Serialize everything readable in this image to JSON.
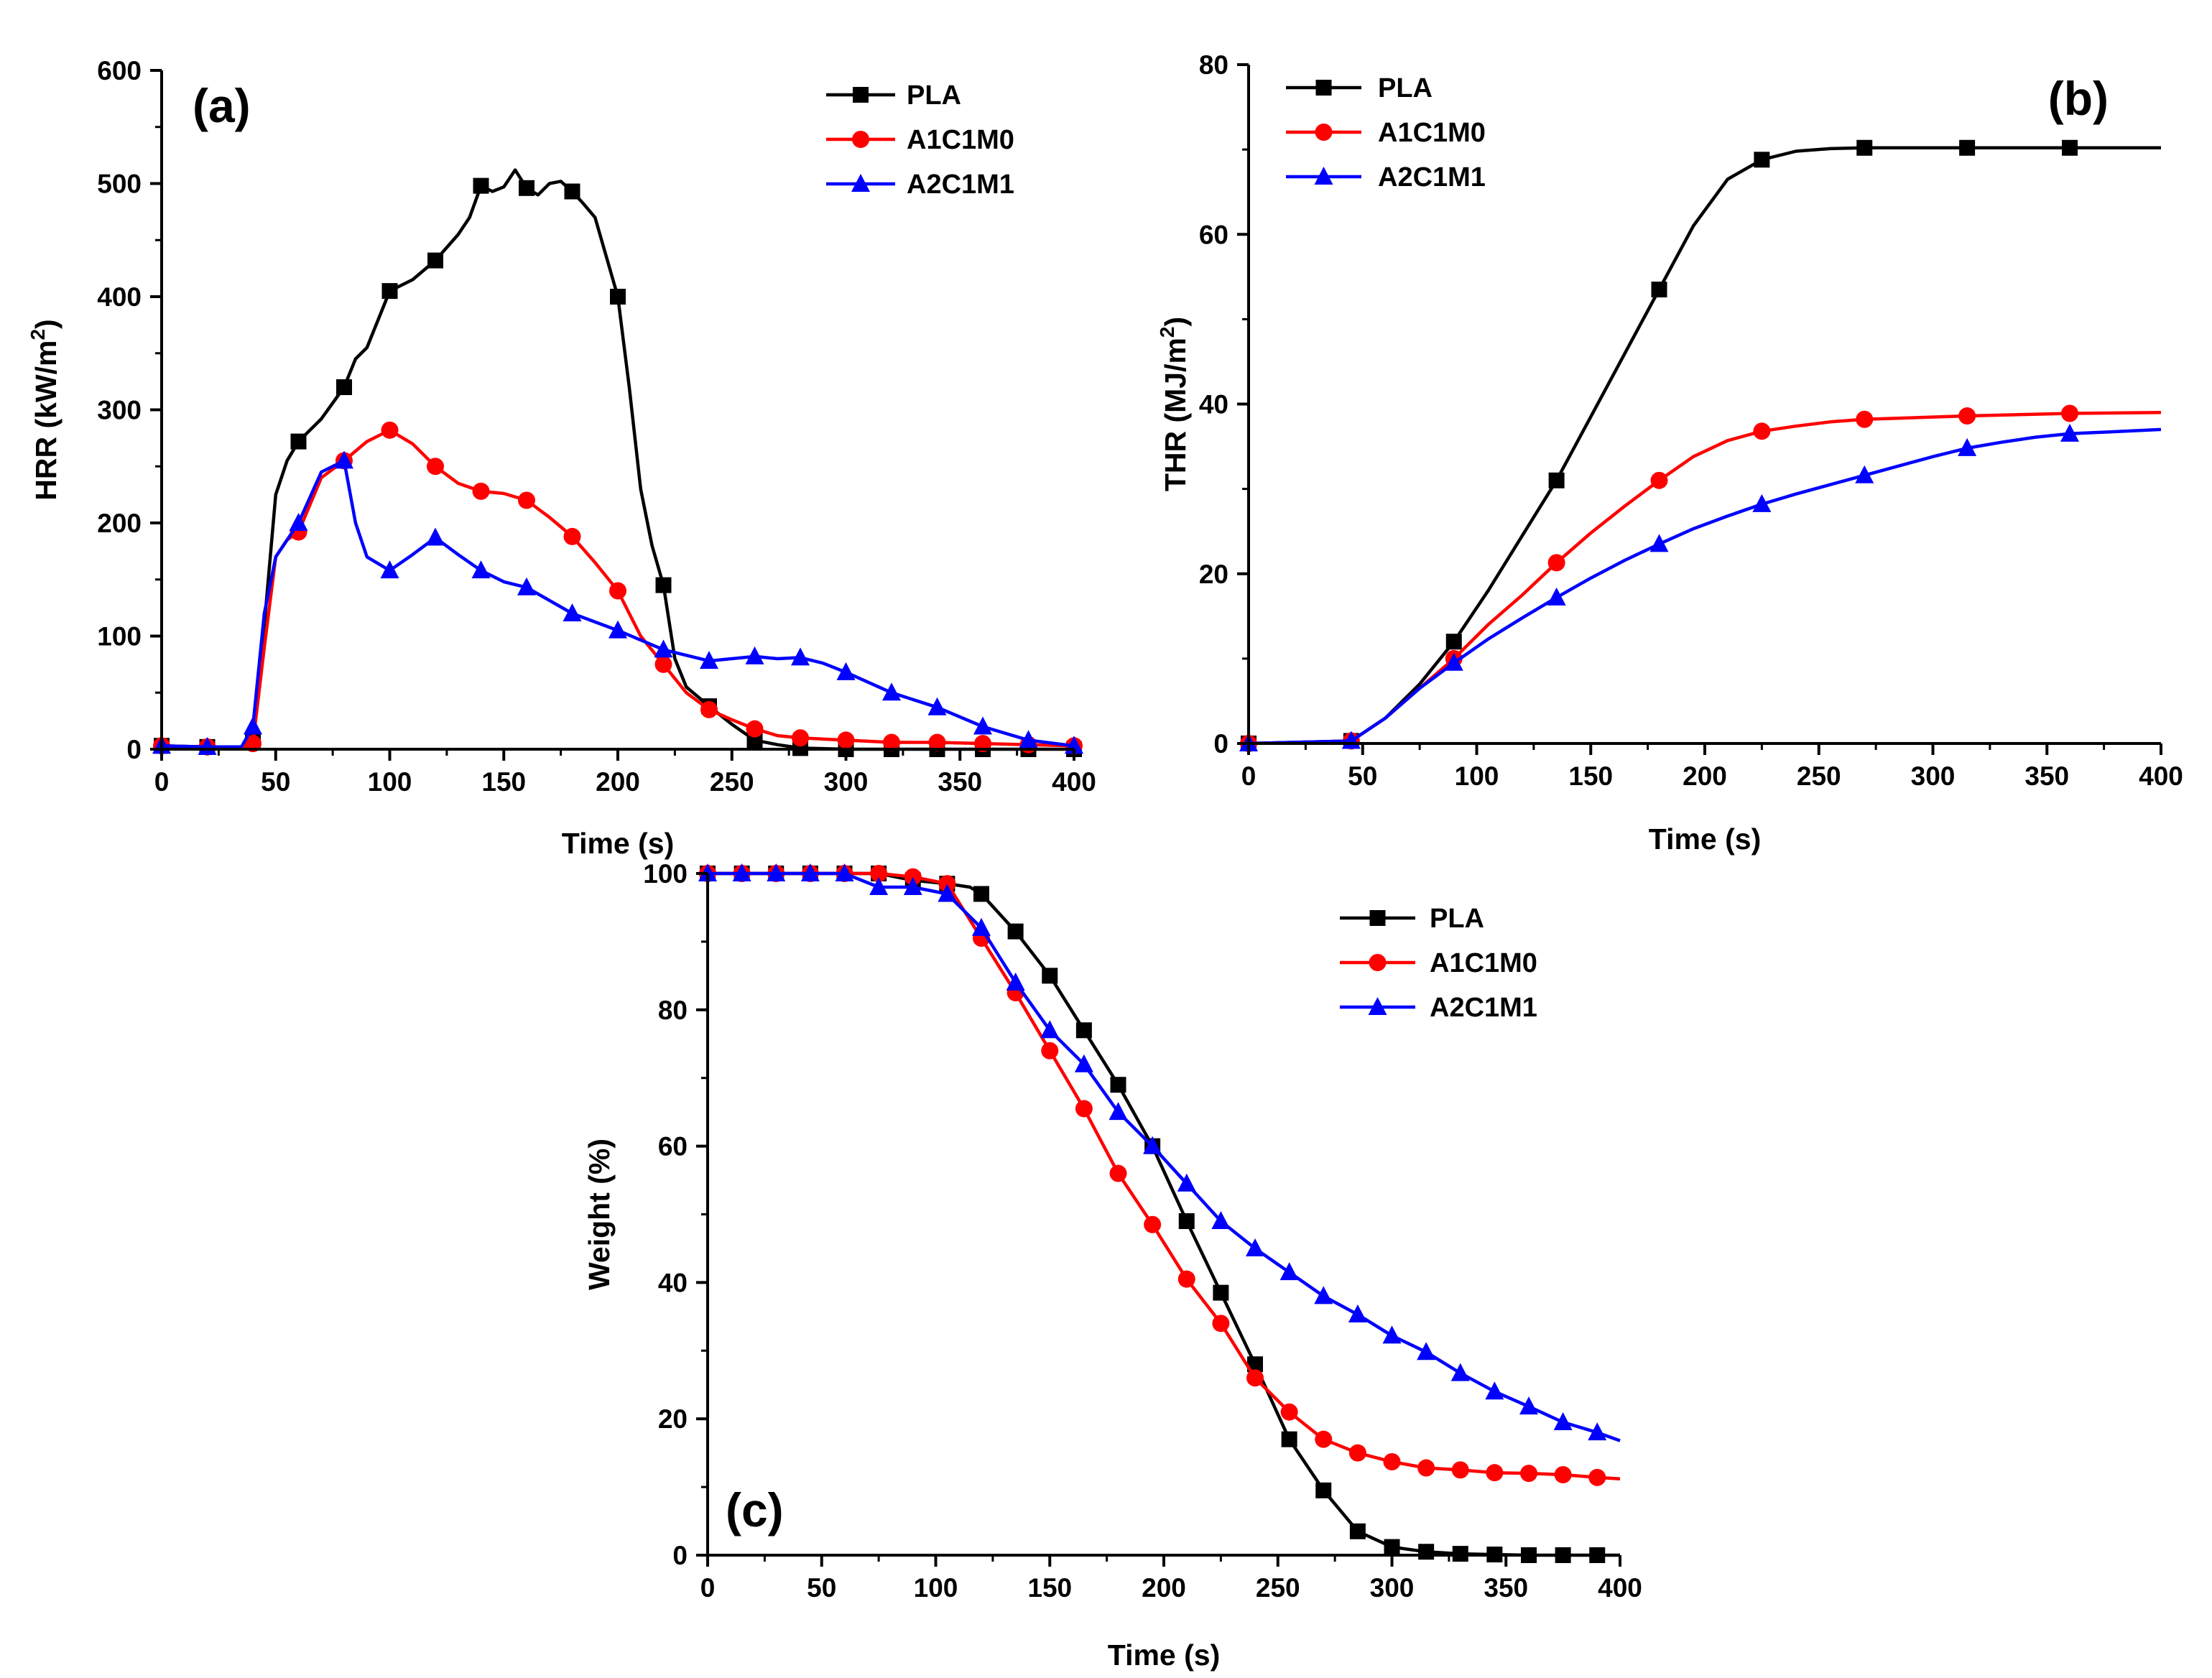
{
  "colors": {
    "PLA": "#000000",
    "A1C1M0": "#ff0000",
    "A2C1M1": "#0000ff"
  },
  "chart_data": [
    {
      "type": "line",
      "panel_label": "(a)",
      "xlabel": "Time (s)",
      "ylabel": "HRR (kW/m",
      "ylabel_sup": "2",
      "ylabel_end": ")",
      "xlim": [
        0,
        400
      ],
      "ylim": [
        0,
        600
      ],
      "xticks": [
        "0",
        "50",
        "100",
        "150",
        "200",
        "250",
        "300",
        "350",
        "400"
      ],
      "yticks": [
        "0",
        "100",
        "200",
        "300",
        "400",
        "500",
        "600"
      ],
      "legend_position": "top-right",
      "series": [
        {
          "name": "PLA",
          "marker": "square",
          "x": [
            0,
            20,
            35,
            40,
            45,
            50,
            55,
            60,
            70,
            80,
            85,
            90,
            100,
            110,
            120,
            130,
            135,
            140,
            145,
            150,
            155,
            160,
            165,
            170,
            175,
            180,
            185,
            190,
            200,
            205,
            210,
            215,
            220,
            225,
            230,
            240,
            250,
            260,
            270,
            280,
            300,
            320,
            340,
            360,
            380,
            400
          ],
          "y": [
            3,
            2,
            2,
            8,
            110,
            225,
            255,
            272,
            292,
            320,
            345,
            355,
            405,
            415,
            432,
            455,
            470,
            498,
            493,
            497,
            512,
            496,
            490,
            500,
            502,
            493,
            482,
            470,
            400,
            320,
            230,
            180,
            145,
            80,
            55,
            38,
            22,
            8,
            4,
            1,
            0,
            0,
            0,
            0,
            0,
            0
          ],
          "marker_x": [
            0,
            20,
            40,
            60,
            80,
            100,
            120,
            140,
            160,
            180,
            200,
            220,
            240,
            260,
            280,
            300,
            320,
            340,
            360,
            380,
            400
          ]
        },
        {
          "name": "A1C1M0",
          "marker": "circle",
          "x": [
            0,
            20,
            35,
            40,
            45,
            50,
            55,
            60,
            70,
            80,
            90,
            100,
            110,
            120,
            130,
            140,
            150,
            160,
            170,
            180,
            190,
            200,
            210,
            220,
            230,
            240,
            250,
            260,
            270,
            280,
            300,
            320,
            340,
            360,
            380,
            400
          ],
          "y": [
            3,
            2,
            2,
            5,
            90,
            170,
            185,
            192,
            240,
            255,
            272,
            282,
            270,
            250,
            235,
            228,
            226,
            220,
            205,
            188,
            165,
            140,
            100,
            75,
            50,
            35,
            26,
            18,
            12,
            10,
            8,
            6,
            6,
            5,
            4,
            3
          ],
          "marker_x": [
            0,
            20,
            40,
            60,
            80,
            100,
            120,
            140,
            160,
            180,
            200,
            220,
            240,
            260,
            280,
            300,
            320,
            340,
            360,
            380,
            400
          ]
        },
        {
          "name": "A2C1M1",
          "marker": "triangle",
          "x": [
            0,
            20,
            35,
            40,
            45,
            50,
            60,
            70,
            80,
            85,
            90,
            100,
            110,
            120,
            130,
            140,
            150,
            160,
            180,
            200,
            220,
            240,
            260,
            270,
            280,
            290,
            300,
            320,
            340,
            360,
            380,
            400
          ],
          "y": [
            3,
            2,
            2,
            20,
            120,
            170,
            200,
            245,
            255,
            200,
            170,
            158,
            172,
            187,
            172,
            158,
            148,
            143,
            120,
            105,
            88,
            78,
            82,
            80,
            81,
            76,
            68,
            50,
            37,
            20,
            8,
            3
          ],
          "marker_x": [
            0,
            20,
            40,
            60,
            80,
            100,
            120,
            140,
            160,
            180,
            200,
            220,
            240,
            260,
            280,
            300,
            320,
            340,
            360,
            380,
            400
          ]
        }
      ]
    },
    {
      "type": "line",
      "panel_label": "(b)",
      "xlabel": "Time (s)",
      "ylabel": "THR (MJ/m",
      "ylabel_sup": "2",
      "ylabel_end": ")",
      "xlim": [
        0,
        400
      ],
      "ylim": [
        0,
        80
      ],
      "xticks": [
        "0",
        "50",
        "100",
        "150",
        "200",
        "250",
        "300",
        "350",
        "400"
      ],
      "yticks": [
        "0",
        "20",
        "40",
        "60",
        "80"
      ],
      "legend_position": "top-left",
      "series": [
        {
          "name": "PLA",
          "marker": "square",
          "x": [
            0,
            45,
            60,
            75,
            90,
            105,
            120,
            135,
            150,
            165,
            180,
            195,
            210,
            225,
            240,
            255,
            270,
            315,
            360,
            400
          ],
          "y": [
            0,
            0.3,
            3,
            7,
            12,
            18,
            24.5,
            31,
            38.5,
            46,
            53.5,
            61,
            66.5,
            68.8,
            69.8,
            70.1,
            70.2,
            70.2,
            70.2,
            70.2
          ],
          "marker_x": [
            0,
            45,
            90,
            135,
            180,
            225,
            270,
            315,
            360
          ]
        },
        {
          "name": "A1C1M0",
          "marker": "circle",
          "x": [
            0,
            45,
            60,
            75,
            90,
            105,
            120,
            135,
            150,
            165,
            180,
            195,
            210,
            225,
            240,
            255,
            270,
            315,
            360,
            400
          ],
          "y": [
            0,
            0.3,
            3,
            6.5,
            10,
            14,
            17.5,
            21.3,
            24.8,
            28,
            31,
            33.8,
            35.7,
            36.8,
            37.4,
            37.9,
            38.2,
            38.6,
            38.9,
            39
          ],
          "marker_x": [
            0,
            45,
            90,
            135,
            180,
            225,
            270,
            315,
            360
          ]
        },
        {
          "name": "A2C1M1",
          "marker": "triangle",
          "x": [
            0,
            45,
            60,
            75,
            90,
            105,
            120,
            135,
            150,
            165,
            180,
            195,
            210,
            225,
            240,
            255,
            270,
            285,
            300,
            315,
            330,
            345,
            360,
            400
          ],
          "y": [
            0,
            0.3,
            3,
            6.5,
            9.5,
            12.3,
            14.8,
            17.2,
            19.5,
            21.6,
            23.5,
            25.3,
            26.8,
            28.2,
            29.4,
            30.5,
            31.6,
            32.7,
            33.8,
            34.8,
            35.5,
            36.1,
            36.5,
            37
          ],
          "marker_x": [
            0,
            45,
            90,
            135,
            180,
            225,
            270,
            315,
            360
          ]
        }
      ]
    },
    {
      "type": "line",
      "panel_label": "(c)",
      "xlabel": "Time (s)",
      "ylabel": "Weight (%)",
      "ylabel_sup": "",
      "ylabel_end": "",
      "xlim": [
        0,
        400
      ],
      "ylim": [
        0,
        100
      ],
      "ytick_values": [
        0,
        20,
        40,
        60,
        80,
        100
      ],
      "xticks": [
        "0",
        "50",
        "100",
        "150",
        "200",
        "250",
        "300",
        "350",
        "400"
      ],
      "yticks": [
        "0",
        "20",
        "40",
        "60",
        "80",
        "100"
      ],
      "legend_position": "top-right",
      "series": [
        {
          "name": "PLA",
          "marker": "square",
          "x": [
            0,
            15,
            30,
            45,
            60,
            75,
            90,
            105,
            115,
            120,
            135,
            150,
            165,
            180,
            195,
            210,
            225,
            240,
            255,
            270,
            285,
            300,
            315,
            330,
            345,
            360,
            375,
            390,
            400
          ],
          "y": [
            100,
            100,
            100,
            100,
            100,
            100,
            99,
            98.5,
            98,
            97,
            91.5,
            85,
            77,
            69,
            60,
            49,
            38.5,
            28,
            17,
            9.5,
            3.5,
            1.2,
            0.5,
            0.2,
            0.1,
            0,
            0,
            0,
            0
          ],
          "marker_x": [
            0,
            15,
            30,
            45,
            60,
            75,
            90,
            105,
            120,
            135,
            150,
            165,
            180,
            195,
            210,
            225,
            240,
            255,
            270,
            285,
            300,
            315,
            330,
            345,
            360,
            375,
            390
          ]
        },
        {
          "name": "A1C1M0",
          "marker": "circle",
          "x": [
            0,
            15,
            30,
            45,
            60,
            75,
            90,
            105,
            120,
            135,
            150,
            165,
            180,
            195,
            210,
            225,
            240,
            255,
            270,
            285,
            300,
            315,
            330,
            345,
            360,
            375,
            390,
            400
          ],
          "y": [
            100,
            100,
            100,
            100,
            100,
            100,
            99.5,
            98.5,
            90.5,
            82.5,
            74,
            65.5,
            56,
            48.5,
            40.5,
            34,
            26,
            21,
            17,
            15,
            13.7,
            12.8,
            12.5,
            12.1,
            12,
            11.8,
            11.4,
            11.2
          ],
          "marker_x": [
            0,
            15,
            30,
            45,
            60,
            75,
            90,
            105,
            120,
            135,
            150,
            165,
            180,
            195,
            210,
            225,
            240,
            255,
            270,
            285,
            300,
            315,
            330,
            345,
            360,
            375,
            390
          ]
        },
        {
          "name": "A2C1M1",
          "marker": "triangle",
          "x": [
            0,
            15,
            30,
            45,
            60,
            75,
            90,
            105,
            120,
            135,
            150,
            165,
            180,
            195,
            210,
            225,
            240,
            255,
            270,
            285,
            300,
            315,
            330,
            345,
            360,
            375,
            390,
            400
          ],
          "y": [
            100,
            100,
            100,
            100,
            100,
            98,
            98,
            97,
            92,
            84,
            77,
            72,
            65,
            60,
            54.5,
            49,
            45,
            41.5,
            38,
            35.3,
            32.2,
            29.8,
            26.7,
            24,
            21.8,
            19.5,
            18,
            16.8
          ],
          "marker_x": [
            0,
            15,
            30,
            45,
            60,
            75,
            90,
            105,
            120,
            135,
            150,
            165,
            180,
            195,
            210,
            225,
            240,
            255,
            270,
            285,
            300,
            315,
            330,
            345,
            360,
            375,
            390
          ]
        }
      ]
    }
  ]
}
